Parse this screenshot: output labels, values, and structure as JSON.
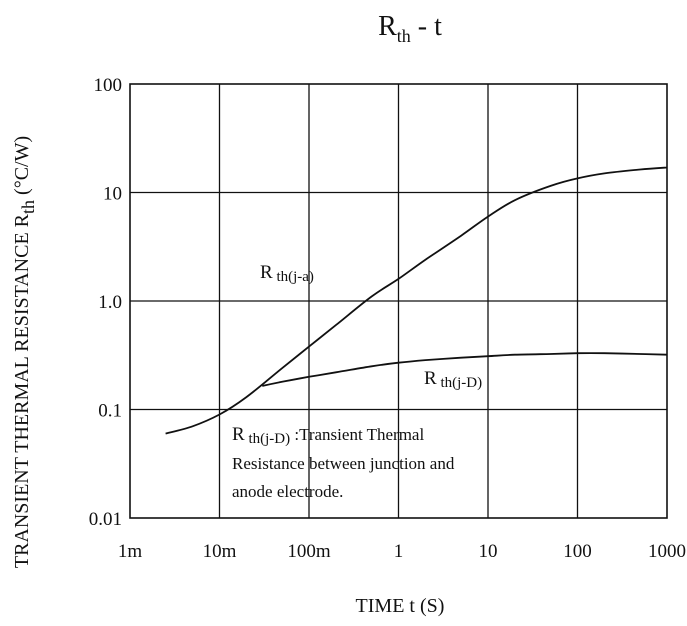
{
  "chart_data": {
    "type": "line",
    "title": {
      "main": "R",
      "sub": "th",
      "rest": "  -  t"
    },
    "xlabel": "TIME t  (S)",
    "ylabel": {
      "main": "TRANSIENT THERMAL RESISTANCE R",
      "sub": "th",
      "unit": "  (°C/W)"
    },
    "x_scale": "log",
    "y_scale": "log",
    "xlim": [
      0.001,
      1000
    ],
    "ylim": [
      0.01,
      100
    ],
    "grid": true,
    "x_ticks": [
      {
        "value": 0.001,
        "label": "1m"
      },
      {
        "value": 0.01,
        "label": "10m"
      },
      {
        "value": 0.1,
        "label": "100m"
      },
      {
        "value": 1,
        "label": "1"
      },
      {
        "value": 10,
        "label": "10"
      },
      {
        "value": 100,
        "label": "100"
      },
      {
        "value": 1000,
        "label": "1000"
      }
    ],
    "y_ticks": [
      {
        "value": 0.01,
        "label": "0.01"
      },
      {
        "value": 0.1,
        "label": "0.1"
      },
      {
        "value": 1,
        "label": "1.0"
      },
      {
        "value": 10,
        "label": "10"
      },
      {
        "value": 100,
        "label": "100"
      }
    ],
    "series": [
      {
        "name": "R th(j-a)",
        "label_main": "R",
        "label_sub": " th(j-a)",
        "x": [
          0.0025,
          0.005,
          0.01,
          0.02,
          0.05,
          0.1,
          0.2,
          0.5,
          1,
          2,
          5,
          10,
          20,
          50,
          100,
          200,
          500,
          1000
        ],
        "y": [
          0.06,
          0.07,
          0.09,
          0.13,
          0.24,
          0.38,
          0.6,
          1.1,
          1.6,
          2.4,
          4.0,
          6.0,
          8.5,
          11.5,
          13.5,
          15.0,
          16.3,
          17.0
        ]
      },
      {
        "name": "R th(j-D)",
        "label_main": "R",
        "label_sub": " th(j-D)",
        "x": [
          0.03,
          0.05,
          0.1,
          0.2,
          0.5,
          1,
          2,
          5,
          10,
          20,
          50,
          100,
          200,
          500,
          1000
        ],
        "y": [
          0.165,
          0.18,
          0.2,
          0.22,
          0.25,
          0.27,
          0.285,
          0.3,
          0.31,
          0.32,
          0.325,
          0.33,
          0.33,
          0.325,
          0.32
        ]
      }
    ],
    "annotation": {
      "main": "R",
      "sub": " th(j-D)",
      "line1_rest": " :Transient Thermal",
      "line2": "Resistance between junction and",
      "line3": "anode electrode."
    }
  }
}
